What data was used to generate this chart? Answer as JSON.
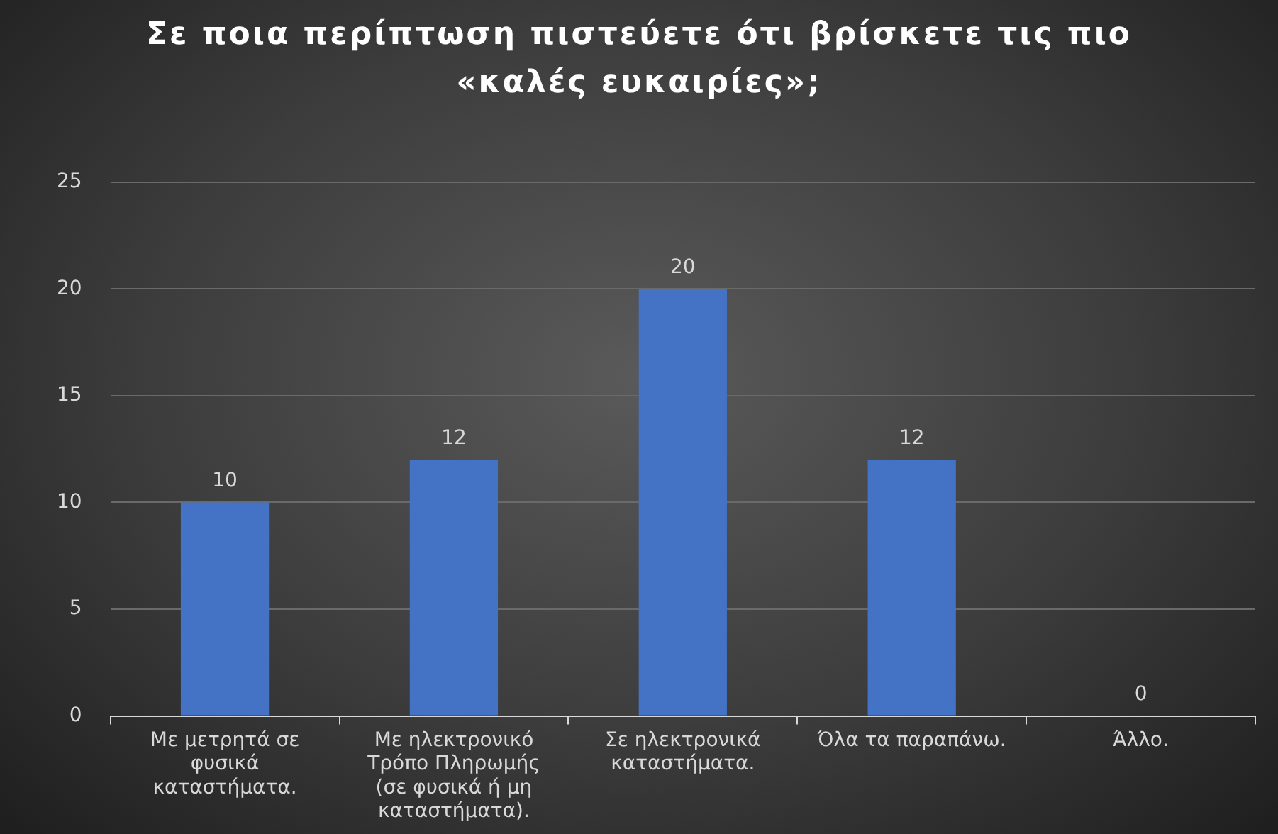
{
  "chart_data": {
    "type": "bar",
    "title": "Σε ποια περίπτωση πιστεύετε ότι βρίσκετε τις πιο «καλές ευκαιρίες»;",
    "categories": [
      "Με μετρητά σε φυσικά καταστήματα.",
      "Με ηλεκτρονικό Τρόπο Πληρωμής (σε φυσικά ή μη καταστήματα).",
      "Σε ηλεκτρονικά καταστήματα.",
      "Όλα τα παραπάνω.",
      "Άλλο."
    ],
    "values": [
      10,
      12,
      20,
      12,
      0
    ],
    "color": "#4472c4",
    "ylim": [
      0,
      25
    ],
    "yticks": [
      0,
      5,
      10,
      15,
      20,
      25
    ],
    "grid": "y",
    "data_labels": true
  }
}
